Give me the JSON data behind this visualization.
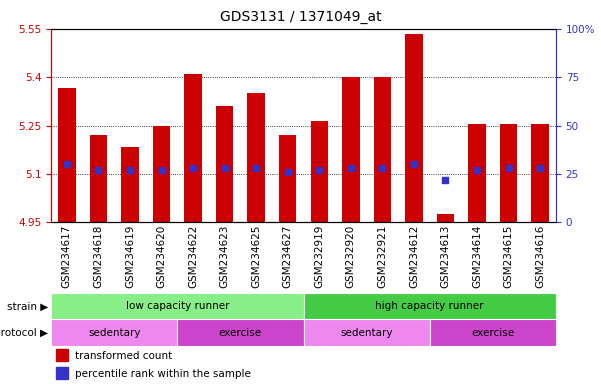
{
  "title": "GDS3131 / 1371049_at",
  "samples": [
    "GSM234617",
    "GSM234618",
    "GSM234619",
    "GSM234620",
    "GSM234622",
    "GSM234623",
    "GSM234625",
    "GSM234627",
    "GSM232919",
    "GSM232920",
    "GSM232921",
    "GSM234612",
    "GSM234613",
    "GSM234614",
    "GSM234615",
    "GSM234616"
  ],
  "transformed_count": [
    5.365,
    5.22,
    5.185,
    5.25,
    5.41,
    5.31,
    5.35,
    5.22,
    5.265,
    5.4,
    5.4,
    5.535,
    4.975,
    5.255,
    5.255,
    5.255
  ],
  "percentile_rank": [
    30,
    27,
    27,
    27,
    28,
    28,
    28,
    26,
    27,
    28,
    28,
    30,
    22,
    27,
    28,
    28
  ],
  "bar_bottom": 4.95,
  "ylim_left": [
    4.95,
    5.55
  ],
  "ylim_right": [
    0,
    100
  ],
  "yticks_left": [
    4.95,
    5.1,
    5.25,
    5.4,
    5.55
  ],
  "ytick_labels_left": [
    "4.95",
    "5.1",
    "5.25",
    "5.4",
    "5.55"
  ],
  "yticks_right": [
    0,
    25,
    50,
    75,
    100
  ],
  "ytick_labels_right": [
    "0",
    "25",
    "50",
    "75",
    "100%"
  ],
  "bar_color": "#cc0000",
  "dot_color": "#3333cc",
  "strain_labels": [
    "low capacity runner",
    "high capacity runner"
  ],
  "strain_colors": [
    "#88ee88",
    "#44cc44"
  ],
  "strain_ranges": [
    [
      0,
      8
    ],
    [
      8,
      16
    ]
  ],
  "protocol_groups": [
    {
      "label": "sedentary",
      "range": [
        0,
        4
      ],
      "color": "#ee88ee"
    },
    {
      "label": "exercise",
      "range": [
        4,
        8
      ],
      "color": "#cc44cc"
    },
    {
      "label": "sedentary",
      "range": [
        8,
        12
      ],
      "color": "#ee88ee"
    },
    {
      "label": "exercise",
      "range": [
        12,
        16
      ],
      "color": "#cc44cc"
    }
  ],
  "left_axis_color": "#cc0000",
  "right_axis_color": "#3333cc",
  "grid_color": "#000000",
  "bg_color": "#ffffff",
  "plot_bg_color": "#ffffff",
  "label_fontsize": 7.5,
  "tick_fontsize": 7.5,
  "title_fontsize": 10,
  "gridline_ticks": [
    5.1,
    5.25,
    5.4
  ]
}
